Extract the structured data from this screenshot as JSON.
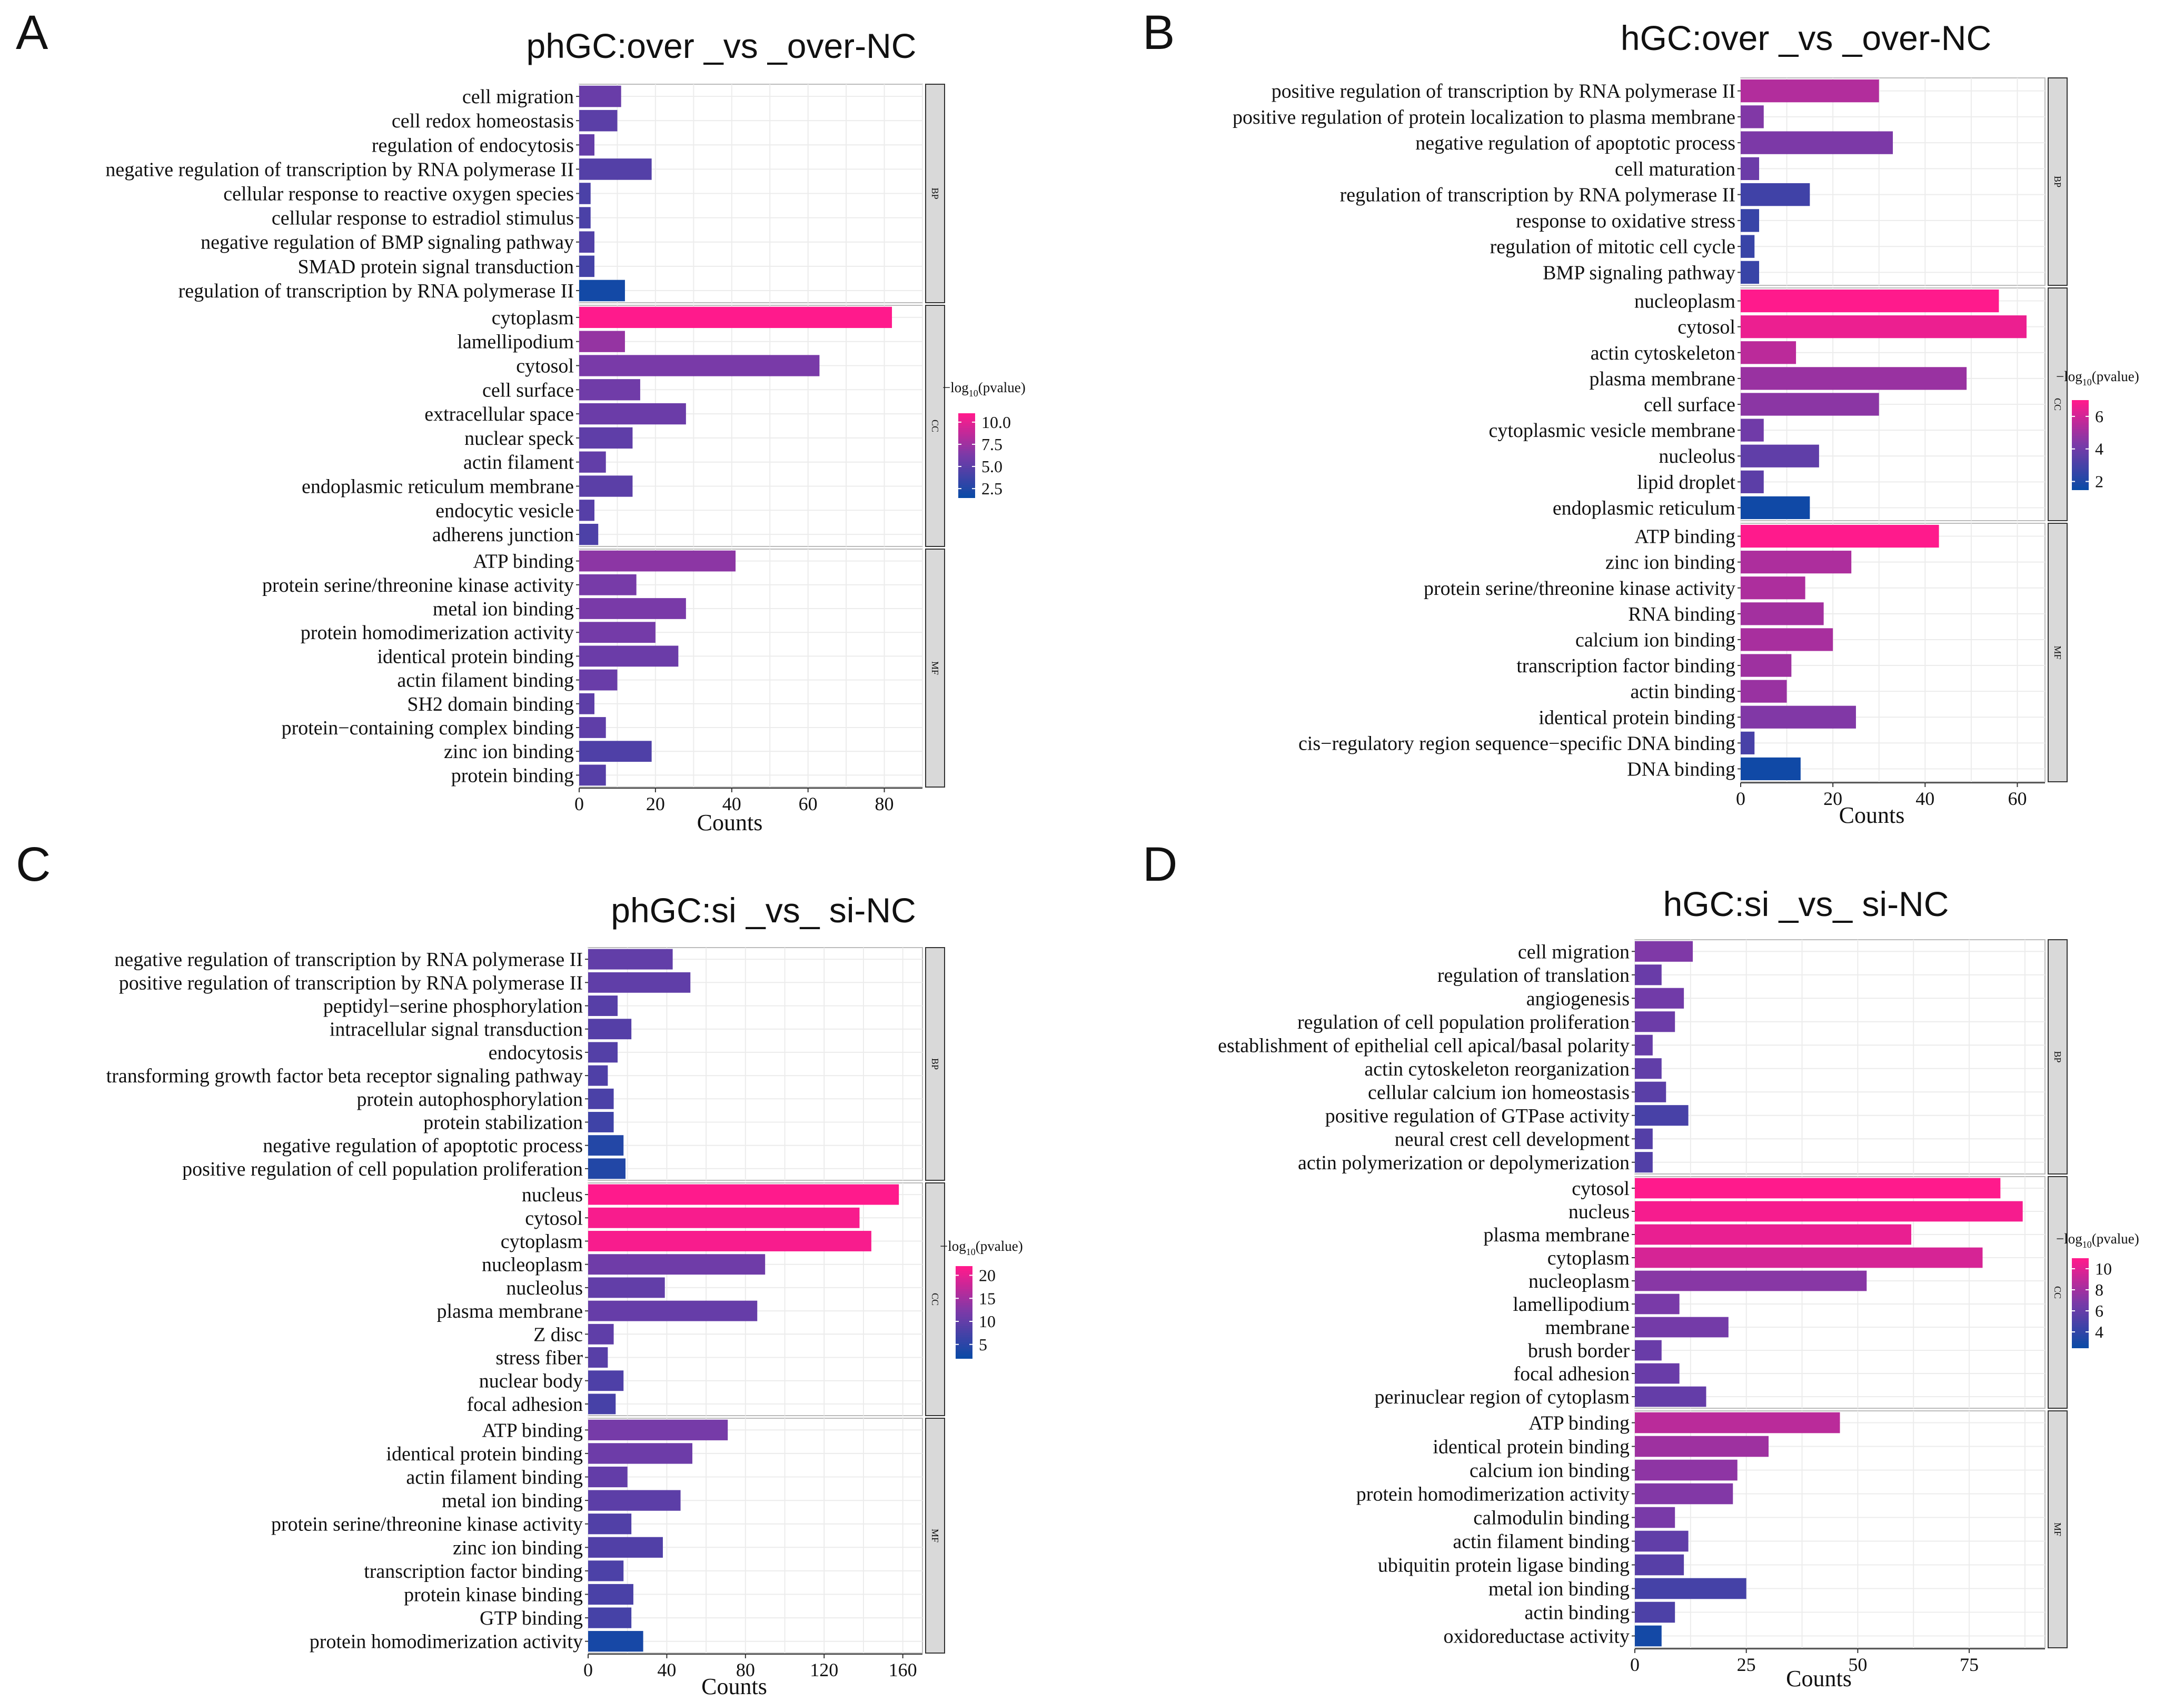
{
  "figure_labels": [
    "A",
    "B",
    "C",
    "D"
  ],
  "legend_title": "−log",
  "legend_title_sub": "10",
  "legend_title_tail": "(pvalue)",
  "colors": {
    "low": "#0c4aa6",
    "mid": "#7a3aa8",
    "high": "#ff1a8c",
    "grid": "#ececec",
    "strip_fill": "#d9d9d9",
    "strip_border": "#333333"
  },
  "chart_data": [
    {
      "type": "bar",
      "panel": "A",
      "title": "phGC:over _vs _over-NC",
      "xlabel": "Counts",
      "xlim": [
        0,
        90
      ],
      "xticks": [
        0,
        20,
        40,
        60,
        80
      ],
      "color_range": [
        1.5,
        11
      ],
      "legend_ticks": [
        "10.0",
        "7.5",
        "5.0",
        "2.5"
      ],
      "legend_tick_values": [
        10,
        7.5,
        5,
        2.5
      ],
      "groups": [
        {
          "name": "BP",
          "categories": [
            "cell migration",
            "cell redox homeostasis",
            "regulation of endocytosis",
            "negative regulation of transcription by RNA polymerase II",
            "cellular response to reactive oxygen species",
            "cellular response to estradiol stimulus",
            "negative regulation of BMP signaling pathway",
            "SMAD protein signal transduction",
            "regulation of transcription by RNA polymerase II"
          ],
          "values": [
            11,
            10,
            4,
            19,
            3,
            3,
            4,
            4,
            12
          ],
          "pvalues": [
            5.5,
            4.9,
            5.3,
            4.6,
            4.2,
            4.2,
            4.5,
            3.9,
            1.8
          ]
        },
        {
          "name": "CC",
          "categories": [
            "cytoplasm",
            "lamellipodium",
            "cytosol",
            "cell surface",
            "extracellular space",
            "nuclear speck",
            "actin filament",
            "endoplasmic reticulum membrane",
            "endocytic vesicle",
            "adherens junction"
          ],
          "values": [
            82,
            12,
            63,
            16,
            28,
            14,
            7,
            14,
            4,
            5
          ],
          "pvalues": [
            11,
            7.2,
            6.2,
            5.8,
            5.6,
            5.1,
            5.2,
            4.9,
            4.7,
            4.3
          ]
        },
        {
          "name": "MF",
          "categories": [
            "ATP binding",
            "protein serine/threonine kinase activity",
            "metal ion binding",
            "protein homodimerization activity",
            "identical protein binding",
            "actin filament binding",
            "SH2 domain binding",
            "protein−containing complex binding",
            "zinc ion binding",
            "protein binding"
          ],
          "values": [
            41,
            15,
            28,
            20,
            26,
            10,
            4,
            7,
            19,
            7
          ],
          "pvalues": [
            6.9,
            6.1,
            6.2,
            6.0,
            5.6,
            5.5,
            5.0,
            5.1,
            4.4,
            4.7
          ]
        }
      ]
    },
    {
      "type": "bar",
      "panel": "B",
      "title": "hGC:over _vs _over-NC",
      "xlabel": "Counts",
      "xlim": [
        0,
        66
      ],
      "xticks": [
        0,
        20,
        40,
        60
      ],
      "color_range": [
        1.5,
        7
      ],
      "legend_ticks": [
        "6",
        "4",
        "2"
      ],
      "legend_tick_values": [
        6,
        4,
        2
      ],
      "groups": [
        {
          "name": "BP",
          "categories": [
            "positive regulation of transcription by RNA polymerase II",
            "positive regulation of protein localization to plasma membrane",
            "negative regulation of apoptotic process",
            "cell maturation",
            "regulation of transcription by RNA polymerase II",
            "response to oxidative stress",
            "regulation of mitotic cell cycle",
            "BMP signaling pathway"
          ],
          "values": [
            30,
            5,
            33,
            4,
            15,
            4,
            3,
            4
          ],
          "pvalues": [
            5.4,
            4.4,
            4.3,
            3.9,
            2.8,
            2.6,
            2.6,
            2.6
          ]
        },
        {
          "name": "CC",
          "categories": [
            "nucleoplasm",
            "cytosol",
            "actin cytoskeleton",
            "plasma membrane",
            "cell surface",
            "cytoplasmic vesicle membrane",
            "nucleolus",
            "lipid droplet",
            "endoplasmic reticulum"
          ],
          "values": [
            56,
            62,
            12,
            49,
            30,
            5,
            17,
            5,
            15
          ],
          "pvalues": [
            7.2,
            6.6,
            5.6,
            4.9,
            4.6,
            4.0,
            3.6,
            3.5,
            1.6
          ]
        },
        {
          "name": "MF",
          "categories": [
            "ATP binding",
            "zinc ion binding",
            "protein serine/threonine kinase activity",
            "RNA binding",
            "calcium ion binding",
            "transcription factor binding",
            "actin binding",
            "identical protein binding",
            "cis−regulatory region sequence−specific DNA binding",
            "DNA binding"
          ],
          "values": [
            43,
            24,
            14,
            18,
            20,
            11,
            10,
            25,
            3,
            13
          ],
          "pvalues": [
            7.2,
            5.3,
            5.3,
            5.1,
            5.2,
            5.0,
            4.9,
            4.4,
            3.0,
            1.6
          ]
        }
      ]
    },
    {
      "type": "bar",
      "panel": "C",
      "title": "phGC:si _vs_ si-NC",
      "xlabel": "Counts",
      "xlim": [
        0,
        170
      ],
      "xticks": [
        0,
        40,
        80,
        120,
        160
      ],
      "color_range": [
        2,
        22
      ],
      "legend_ticks": [
        "20",
        "15",
        "10",
        "5"
      ],
      "legend_tick_values": [
        20,
        15,
        10,
        5
      ],
      "groups": [
        {
          "name": "BP",
          "categories": [
            "negative regulation of transcription by RNA polymerase II",
            "positive regulation of transcription by RNA polymerase II",
            "peptidyl−serine phosphorylation",
            "intracellular signal transduction",
            "endocytosis",
            "transforming growth factor beta receptor signaling pathway",
            "protein autophosphorylation",
            "protein stabilization",
            "negative regulation of apoptotic process",
            "positive regulation of cell population proliferation"
          ],
          "values": [
            43,
            52,
            15,
            22,
            15,
            10,
            13,
            13,
            18,
            19
          ],
          "pvalues": [
            9.8,
            9.6,
            8.8,
            8.6,
            8.5,
            8.1,
            7.7,
            6.6,
            4.1,
            4.0
          ]
        },
        {
          "name": "CC",
          "categories": [
            "nucleus",
            "cytosol",
            "cytoplasm",
            "nucleoplasm",
            "nucleolus",
            "plasma membrane",
            "Z disc",
            "stress fiber",
            "nuclear body",
            "focal adhesion"
          ],
          "values": [
            158,
            138,
            144,
            90,
            39,
            86,
            13,
            10,
            18,
            14
          ],
          "pvalues": [
            22,
            21.5,
            21.5,
            11,
            9.8,
            10.2,
            9.5,
            8.9,
            8.0,
            7.4
          ]
        },
        {
          "name": "MF",
          "categories": [
            "ATP binding",
            "identical protein binding",
            "actin filament binding",
            "metal ion binding",
            "protein serine/threonine kinase activity",
            "zinc ion binding",
            "transcription factor binding",
            "protein kinase binding",
            "GTP binding",
            "protein homodimerization activity"
          ],
          "values": [
            71,
            53,
            20,
            47,
            22,
            38,
            18,
            23,
            22,
            28
          ],
          "pvalues": [
            11.6,
            10.8,
            9.9,
            9.3,
            8.3,
            8.3,
            7.8,
            7.6,
            7.3,
            3.0
          ]
        }
      ]
    },
    {
      "type": "bar",
      "panel": "D",
      "title": "hGC:si _vs_ si-NC",
      "xlabel": "Counts",
      "xlim": [
        0,
        92
      ],
      "xticks": [
        0,
        25,
        50,
        75
      ],
      "color_range": [
        2.5,
        11
      ],
      "legend_ticks": [
        "10",
        "8",
        "6",
        "4"
      ],
      "legend_tick_values": [
        10,
        8,
        6,
        4
      ],
      "groups": [
        {
          "name": "BP",
          "categories": [
            "cell migration",
            "regulation of translation",
            "angiogenesis",
            "regulation of cell population proliferation",
            "establishment of epithelial cell apical/basal polarity",
            "actin cytoskeleton reorganization",
            "cellular calcium ion homeostasis",
            "positive regulation of GTPase activity",
            "neural crest cell development",
            "actin polymerization or depolymerization"
          ],
          "values": [
            13,
            6,
            11,
            9,
            4,
            6,
            7,
            12,
            4,
            4
          ],
          "pvalues": [
            6.9,
            6.1,
            6.4,
            6.2,
            6.0,
            5.8,
            5.5,
            4.8,
            5.3,
            5.2
          ]
        },
        {
          "name": "CC",
          "categories": [
            "cytosol",
            "nucleus",
            "plasma membrane",
            "cytoplasm",
            "nucleoplasm",
            "lamellipodium",
            "membrane",
            "brush border",
            "focal adhesion",
            "perinuclear region of cytoplasm"
          ],
          "values": [
            82,
            87,
            62,
            78,
            52,
            10,
            21,
            6,
            10,
            16
          ],
          "pvalues": [
            11,
            10.7,
            10.3,
            9.7,
            7.2,
            6.7,
            6.5,
            6.1,
            6.1,
            5.9
          ]
        },
        {
          "name": "MF",
          "categories": [
            "ATP binding",
            "identical protein binding",
            "calcium ion binding",
            "protein homodimerization activity",
            "calmodulin binding",
            "actin filament binding",
            "ubiquitin protein ligase binding",
            "metal ion binding",
            "actin binding",
            "oxidoreductase activity"
          ],
          "values": [
            46,
            30,
            23,
            22,
            9,
            12,
            11,
            25,
            9,
            6
          ],
          "pvalues": [
            8.8,
            7.9,
            7.4,
            7.0,
            6.7,
            5.8,
            5.4,
            4.7,
            5.0,
            2.8
          ]
        }
      ]
    }
  ]
}
